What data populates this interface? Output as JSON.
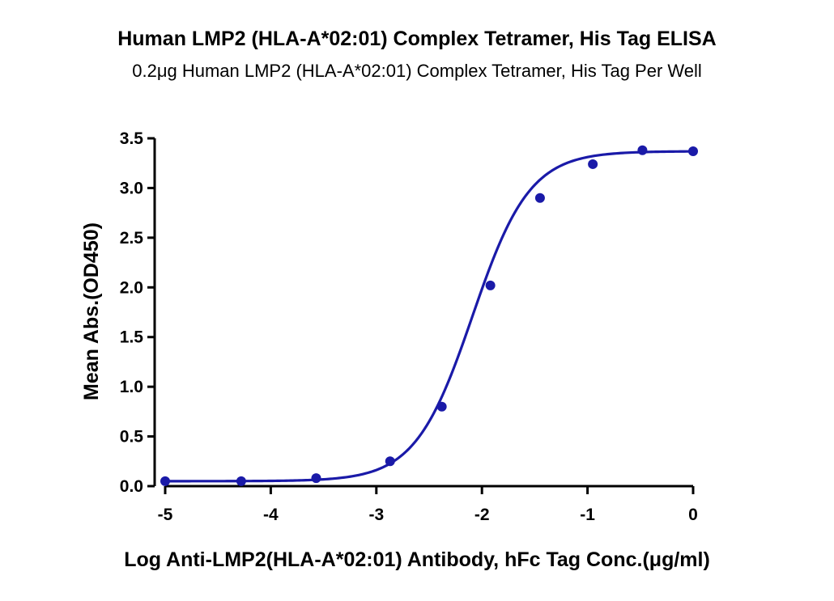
{
  "colors": {
    "series": "#1a1aa8",
    "axis": "#000000"
  },
  "chart_data": {
    "type": "scatter",
    "title": "Human LMP2 (HLA-A*02:01) Complex Tetramer, His Tag ELISA",
    "subtitle": "0.2μg Human LMP2 (HLA-A*02:01) Complex Tetramer, His Tag Per Well",
    "xlabel": "Log Anti-LMP2(HLA-A*02:01) Antibody, hFc Tag Conc.(μg/ml)",
    "ylabel": "Mean Abs.(OD450)",
    "xlim": [
      -5,
      0
    ],
    "ylim": [
      0,
      3.5
    ],
    "xticks": [
      -5,
      -4,
      -3,
      -2,
      -1,
      0
    ],
    "xtick_labels": [
      "-5",
      "-4",
      "-3",
      "-2",
      "-1",
      "0"
    ],
    "yticks": [
      0,
      0.5,
      1.0,
      1.5,
      2.0,
      2.5,
      3.0,
      3.5
    ],
    "ytick_labels": [
      "0.0",
      "0.5",
      "1.0",
      "1.5",
      "2.0",
      "2.5",
      "3.0",
      "3.5"
    ],
    "grid": false,
    "series": [
      {
        "x": [
          -5,
          -4.28,
          -3.57,
          -2.87,
          -2.38,
          -1.92,
          -1.45,
          -0.95,
          -0.48,
          0
        ],
        "y": [
          0.05,
          0.05,
          0.08,
          0.25,
          0.8,
          2.02,
          2.9,
          3.24,
          3.38,
          3.37
        ]
      }
    ],
    "fit": {
      "model": "4PL",
      "bottom": 0.05,
      "top": 3.37,
      "logEC50": -2.09,
      "hill": 1.6
    }
  }
}
